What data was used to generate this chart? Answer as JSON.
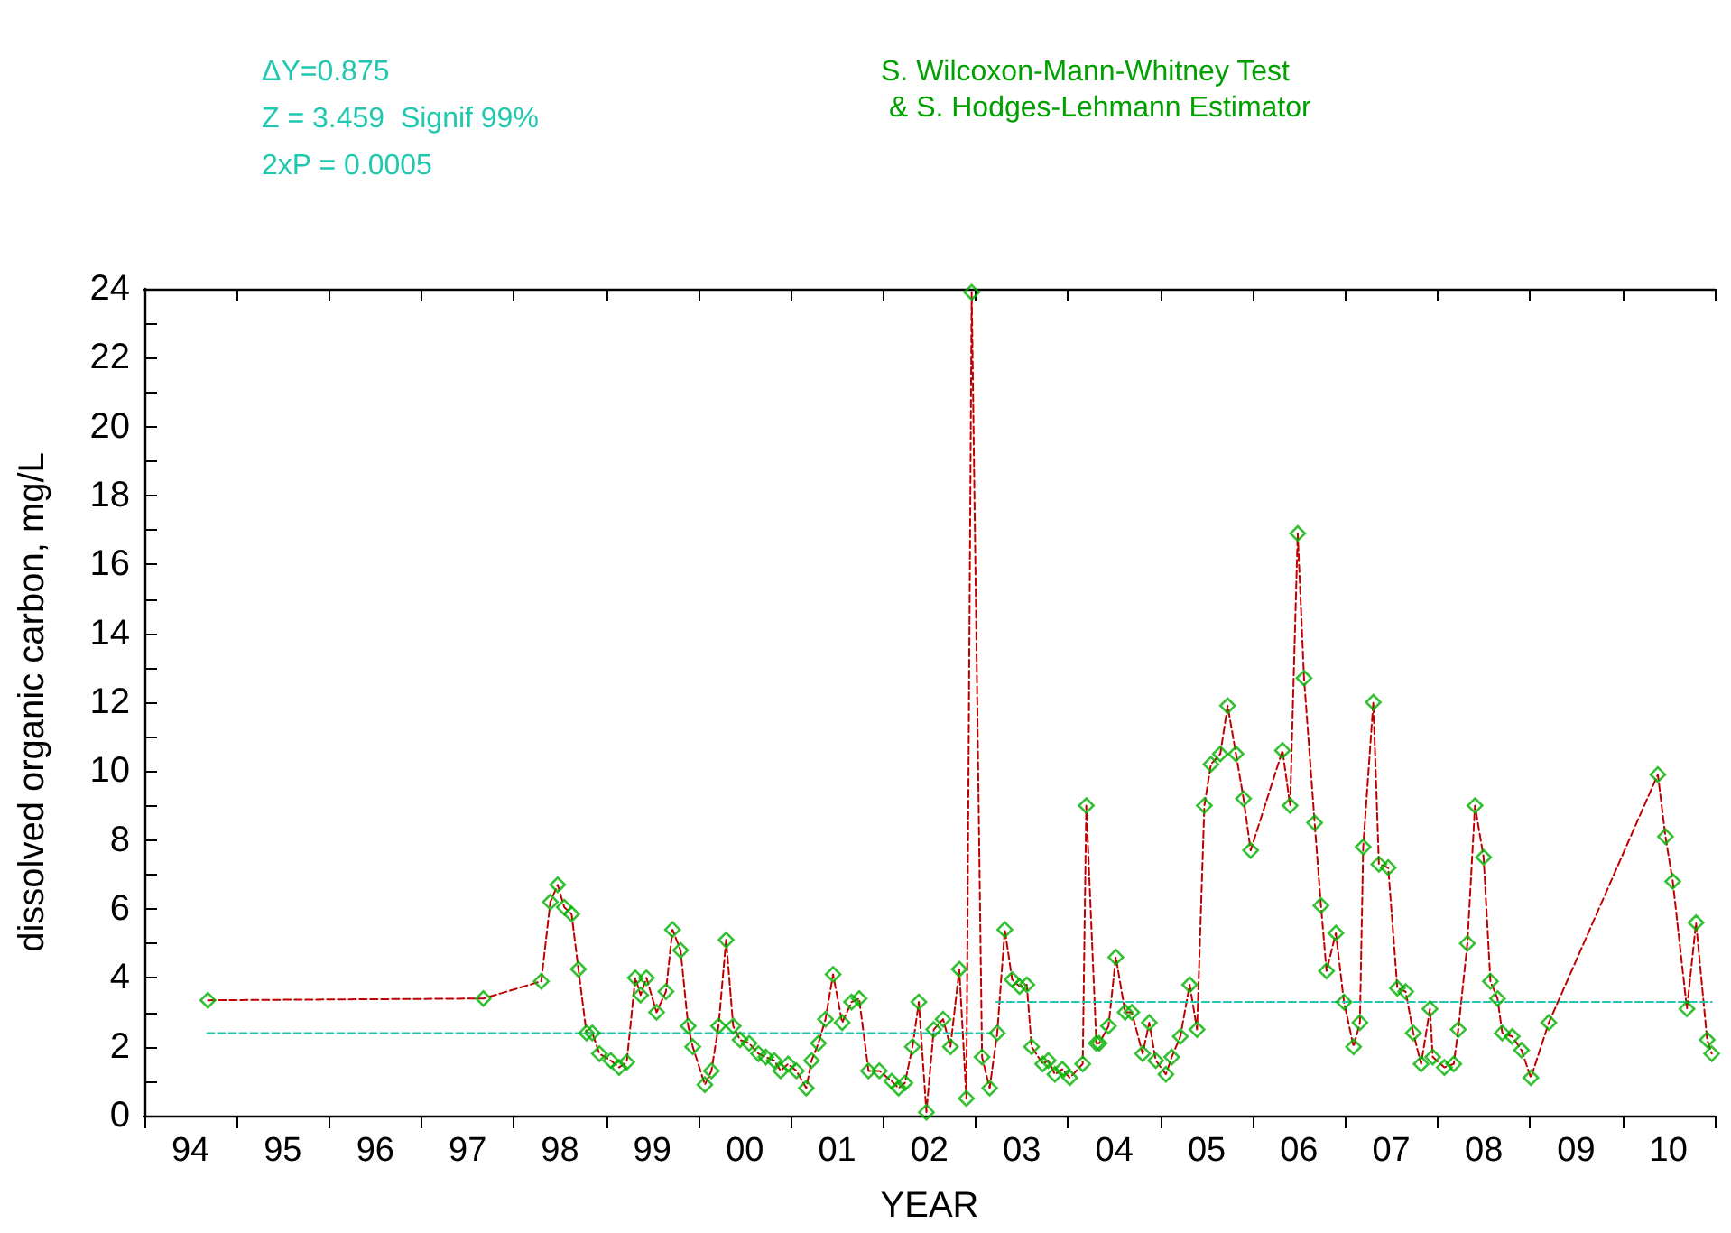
{
  "chart_data": {
    "type": "line",
    "xlabel": "YEAR",
    "ylabel": "dissolved organic carbon, mg/L",
    "annotations": [
      "ΔY=0.875",
      "Z = 3.459  Signif 99%",
      "2xP = 0.0005",
      "S. Wilcoxon-Mann-Whitney Test\n & S. Hodges-Lehmann Estimator"
    ],
    "xlim": [
      "1994-01-01",
      "2011-01-01"
    ],
    "xticks": [
      {
        "value": "1994-01-01",
        "label": null
      },
      {
        "value": "1994-07-02",
        "label": "94"
      },
      {
        "value": "1995-01-01",
        "label": null
      },
      {
        "value": "1995-07-02",
        "label": "95"
      },
      {
        "value": "1996-01-01",
        "label": null
      },
      {
        "value": "1996-07-02",
        "label": "96"
      },
      {
        "value": "1997-01-01",
        "label": null
      },
      {
        "value": "1997-07-02",
        "label": "97"
      },
      {
        "value": "1998-01-01",
        "label": null
      },
      {
        "value": "1998-07-02",
        "label": "98"
      },
      {
        "value": "1999-01-01",
        "label": null
      },
      {
        "value": "1999-07-02",
        "label": "99"
      },
      {
        "value": "2000-01-01",
        "label": null
      },
      {
        "value": "2000-07-02",
        "label": "00"
      },
      {
        "value": "2001-01-01",
        "label": null
      },
      {
        "value": "2001-07-02",
        "label": "01"
      },
      {
        "value": "2002-01-01",
        "label": null
      },
      {
        "value": "2002-07-02",
        "label": "02"
      },
      {
        "value": "2003-01-01",
        "label": null
      },
      {
        "value": "2003-07-02",
        "label": "03"
      },
      {
        "value": "2004-01-01",
        "label": null
      },
      {
        "value": "2004-07-02",
        "label": "04"
      },
      {
        "value": "2005-01-01",
        "label": null
      },
      {
        "value": "2005-07-02",
        "label": "05"
      },
      {
        "value": "2006-01-01",
        "label": null
      },
      {
        "value": "2006-07-02",
        "label": "06"
      },
      {
        "value": "2007-01-01",
        "label": null
      },
      {
        "value": "2007-07-02",
        "label": "07"
      },
      {
        "value": "2008-01-01",
        "label": null
      },
      {
        "value": "2008-07-02",
        "label": "08"
      },
      {
        "value": "2009-01-01",
        "label": null
      },
      {
        "value": "2009-07-02",
        "label": "09"
      },
      {
        "value": "2010-01-01",
        "label": null
      },
      {
        "value": "2010-07-02",
        "label": "10"
      },
      {
        "value": "2011-01-01",
        "label": null
      }
    ],
    "ylim": [
      0,
      24
    ],
    "yticks": [
      0,
      {
        "value": 1,
        "label": null
      },
      2,
      {
        "value": 3,
        "label": null
      },
      4,
      {
        "value": 5,
        "label": null
      },
      6,
      {
        "value": 7,
        "label": null
      },
      8,
      {
        "value": 9,
        "label": null
      },
      10,
      {
        "value": 11,
        "label": null
      },
      12,
      {
        "value": 13,
        "label": null
      },
      14,
      {
        "value": 15,
        "label": null
      },
      16,
      {
        "value": 17,
        "label": null
      },
      18,
      {
        "value": 19,
        "label": null
      },
      20,
      {
        "value": 21,
        "label": null
      },
      22,
      {
        "value": 23,
        "label": null
      },
      24
    ],
    "grid": false,
    "series": [
      {
        "type": "line",
        "color": "#c00000",
        "line_style": "dashed",
        "marker": "none",
        "x": [
          "1994-09-09",
          "1997-09-02",
          "1998-04-19",
          "1998-05-25",
          "1998-06-23",
          "1998-07-19",
          "1998-08-17",
          "1998-09-13",
          "1998-10-15",
          "1998-11-07",
          "1998-12-05",
          "1999-01-19",
          "1999-02-21",
          "1999-03-23",
          "1999-04-26",
          "1999-05-17",
          "1999-06-09",
          "1999-07-19",
          "1999-08-25",
          "1999-09-20",
          "1999-10-22",
          "1999-11-21",
          "1999-12-09",
          "2000-01-26",
          "2000-02-21",
          "2000-03-20",
          "2000-04-19",
          "2000-05-17",
          "2000-06-13",
          "2000-07-19",
          "2000-08-25",
          "2000-09-23",
          "2000-10-26",
          "2000-11-21",
          "2000-12-20",
          "2001-01-22",
          "2001-03-02",
          "2001-03-23",
          "2001-04-19",
          "2001-05-17",
          "2001-06-16",
          "2001-07-22",
          "2001-08-28",
          "2001-09-27",
          "2001-11-03",
          "2001-12-16",
          "2002-02-03",
          "2002-03-02",
          "2002-03-27",
          "2002-04-26",
          "2002-05-21",
          "2002-06-20",
          "2002-07-19",
          "2002-08-25",
          "2002-09-23",
          "2002-10-28",
          "2002-11-25",
          "2002-12-16",
          "2003-01-26",
          "2003-02-25",
          "2003-03-27",
          "2003-04-26",
          "2003-05-25",
          "2003-06-23",
          "2003-07-22",
          "2003-08-10",
          "2003-09-23",
          "2003-10-15",
          "2003-11-10",
          "2003-12-09",
          "2004-01-08",
          "2004-02-28",
          "2004-03-13",
          "2004-04-22",
          "2004-05-03",
          "2004-06-09",
          "2004-07-08",
          "2004-08-14",
          "2004-09-09",
          "2004-10-22",
          "2004-11-17",
          "2004-12-13",
          "2005-01-22",
          "2005-02-14",
          "2005-03-20",
          "2005-04-26",
          "2005-05-25",
          "2005-06-23",
          "2005-07-19",
          "2005-08-25",
          "2005-09-23",
          "2005-10-26",
          "2005-11-25",
          "2005-12-23",
          "2006-04-28",
          "2006-05-28",
          "2006-06-27",
          "2006-07-22",
          "2006-09-02",
          "2006-09-27",
          "2006-10-19",
          "2006-11-25",
          "2006-12-27",
          "2007-02-03",
          "2007-02-28",
          "2007-03-13",
          "2007-04-22",
          "2007-05-14",
          "2007-06-20",
          "2007-07-26",
          "2007-08-28",
          "2007-09-27",
          "2007-10-28",
          "2007-12-02",
          "2007-12-13",
          "2008-01-28",
          "2008-03-05",
          "2008-03-23",
          "2008-04-28",
          "2008-05-28",
          "2008-07-01",
          "2008-07-28",
          "2008-08-25",
          "2008-09-13",
          "2008-10-22",
          "2008-11-28",
          "2009-01-04",
          "2009-03-16",
          "2010-05-21",
          "2010-06-20",
          "2010-07-19",
          "2010-09-13",
          "2010-10-19",
          "2010-12-02",
          "2010-12-20"
        ],
        "values": [
          3.35,
          3.4,
          3.9,
          6.2,
          6.7,
          6.05,
          5.85,
          4.25,
          2.4,
          2.4,
          1.8,
          1.6,
          1.4,
          1.55,
          4.0,
          3.5,
          4.0,
          3.0,
          3.6,
          5.4,
          4.8,
          2.6,
          2.0,
          0.9,
          1.3,
          2.6,
          5.1,
          2.6,
          2.2,
          2.1,
          1.8,
          1.7,
          1.6,
          1.3,
          1.5,
          1.3,
          0.8,
          1.6,
          2.1,
          2.8,
          4.1,
          2.7,
          3.3,
          3.4,
          1.3,
          1.3,
          1.0,
          0.8,
          0.95,
          2.0,
          3.3,
          0.1,
          2.5,
          2.8,
          2.0,
          4.25,
          0.5,
          23.9,
          1.7,
          0.8,
          2.4,
          5.4,
          3.95,
          3.75,
          3.8,
          2.0,
          1.5,
          1.6,
          1.2,
          1.35,
          1.1,
          1.5,
          9.0,
          2.1,
          2.1,
          2.6,
          4.6,
          3.0,
          3.0,
          1.8,
          2.7,
          1.6,
          1.2,
          1.7,
          2.3,
          3.8,
          2.5,
          9.0,
          10.2,
          10.5,
          11.9,
          10.5,
          9.2,
          7.7,
          10.6,
          9.0,
          16.9,
          12.7,
          8.5,
          6.1,
          4.2,
          5.3,
          3.3,
          2.0,
          2.7,
          7.8,
          12.0,
          7.3,
          7.2,
          3.7,
          3.6,
          2.4,
          1.5,
          3.1,
          1.7,
          1.4,
          1.5,
          2.5,
          5.0,
          9.0,
          7.5,
          3.9,
          3.4,
          2.4,
          2.3,
          1.9,
          1.1,
          2.7,
          9.9,
          8.1,
          6.8,
          3.1,
          5.6,
          2.2,
          1.8
        ]
      },
      {
        "type": "scatter",
        "color": "#00b000",
        "marker": "diamond",
        "x": [
          "1994-09-09",
          "1997-09-02",
          "1998-04-19",
          "1998-05-25",
          "1998-06-23",
          "1998-07-19",
          "1998-08-17",
          "1998-09-13",
          "1998-10-15",
          "1998-11-07",
          "1998-12-05",
          "1999-01-19",
          "1999-02-21",
          "1999-03-23",
          "1999-04-26",
          "1999-05-17",
          "1999-06-09",
          "1999-07-19",
          "1999-08-25",
          "1999-09-20",
          "1999-10-22",
          "1999-11-21",
          "1999-12-09",
          "2000-01-26",
          "2000-02-21",
          "2000-03-20",
          "2000-04-19",
          "2000-05-17",
          "2000-06-13",
          "2000-07-19",
          "2000-08-25",
          "2000-09-23",
          "2000-10-26",
          "2000-11-21",
          "2000-12-20",
          "2001-01-22",
          "2001-03-02",
          "2001-03-23",
          "2001-04-19",
          "2001-05-17",
          "2001-06-16",
          "2001-07-22",
          "2001-08-28",
          "2001-09-27",
          "2001-11-03",
          "2001-12-16",
          "2002-02-03",
          "2002-03-02",
          "2002-03-27",
          "2002-04-26",
          "2002-05-21",
          "2002-06-20",
          "2002-07-19",
          "2002-08-25",
          "2002-09-23",
          "2002-10-28",
          "2002-11-25",
          "2002-12-16",
          "2003-01-26",
          "2003-02-25",
          "2003-03-27",
          "2003-04-26",
          "2003-05-25",
          "2003-06-23",
          "2003-07-22",
          "2003-08-10",
          "2003-09-23",
          "2003-10-15",
          "2003-11-10",
          "2003-12-09",
          "2004-01-08",
          "2004-02-28",
          "2004-03-13",
          "2004-04-22",
          "2004-05-03",
          "2004-06-09",
          "2004-07-08",
          "2004-08-14",
          "2004-09-09",
          "2004-10-22",
          "2004-11-17",
          "2004-12-13",
          "2005-01-22",
          "2005-02-14",
          "2005-03-20",
          "2005-04-26",
          "2005-05-25",
          "2005-06-23",
          "2005-07-19",
          "2005-08-25",
          "2005-09-23",
          "2005-10-26",
          "2005-11-25",
          "2005-12-23",
          "2006-04-28",
          "2006-05-28",
          "2006-06-27",
          "2006-07-22",
          "2006-09-02",
          "2006-09-27",
          "2006-10-19",
          "2006-11-25",
          "2006-12-27",
          "2007-02-03",
          "2007-02-28",
          "2007-03-13",
          "2007-04-22",
          "2007-05-14",
          "2007-06-20",
          "2007-07-26",
          "2007-08-28",
          "2007-09-27",
          "2007-10-28",
          "2007-12-02",
          "2007-12-13",
          "2008-01-28",
          "2008-03-05",
          "2008-03-23",
          "2008-04-28",
          "2008-05-28",
          "2008-07-01",
          "2008-07-28",
          "2008-08-25",
          "2008-09-13",
          "2008-10-22",
          "2008-11-28",
          "2009-01-04",
          "2009-03-16",
          "2010-05-21",
          "2010-06-20",
          "2010-07-19",
          "2010-09-13",
          "2010-10-19",
          "2010-12-02",
          "2010-12-20"
        ],
        "values": [
          3.35,
          3.4,
          3.9,
          6.2,
          6.7,
          6.05,
          5.85,
          4.25,
          2.4,
          2.4,
          1.8,
          1.6,
          1.4,
          1.55,
          4.0,
          3.5,
          4.0,
          3.0,
          3.6,
          5.4,
          4.8,
          2.6,
          2.0,
          0.9,
          1.3,
          2.6,
          5.1,
          2.6,
          2.2,
          2.1,
          1.8,
          1.7,
          1.6,
          1.3,
          1.5,
          1.3,
          0.8,
          1.6,
          2.1,
          2.8,
          4.1,
          2.7,
          3.3,
          3.4,
          1.3,
          1.3,
          1.0,
          0.8,
          0.95,
          2.0,
          3.3,
          0.1,
          2.5,
          2.8,
          2.0,
          4.25,
          0.5,
          23.9,
          1.7,
          0.8,
          2.4,
          5.4,
          3.95,
          3.75,
          3.8,
          2.0,
          1.5,
          1.6,
          1.2,
          1.35,
          1.1,
          1.5,
          9.0,
          2.1,
          2.1,
          2.6,
          4.6,
          3.0,
          3.0,
          1.8,
          2.7,
          1.6,
          1.2,
          1.7,
          2.3,
          3.8,
          2.5,
          9.0,
          10.2,
          10.5,
          11.9,
          10.5,
          9.2,
          7.7,
          10.6,
          9.0,
          16.9,
          12.7,
          8.5,
          6.1,
          4.2,
          5.3,
          3.3,
          2.0,
          2.7,
          7.8,
          12.0,
          7.3,
          7.2,
          3.7,
          3.6,
          2.4,
          1.5,
          3.1,
          1.7,
          1.4,
          1.5,
          2.5,
          5.0,
          9.0,
          7.5,
          3.9,
          3.4,
          2.4,
          2.3,
          1.9,
          1.1,
          2.7,
          9.9,
          8.1,
          6.8,
          3.1,
          5.6,
          2.2,
          1.8
        ]
      },
      {
        "type": "line",
        "color": "#20c8b0",
        "line_style": "dashed",
        "marker": "none",
        "x": [
          "1994-09-06",
          "2003-03-05"
        ],
        "values": [
          2.4,
          2.4
        ]
      },
      {
        "type": "line",
        "color": "#20c8b0",
        "line_style": "dashed",
        "marker": "none",
        "x": [
          "2003-03-23",
          "2010-12-20"
        ],
        "values": [
          3.3,
          3.3
        ]
      }
    ]
  }
}
